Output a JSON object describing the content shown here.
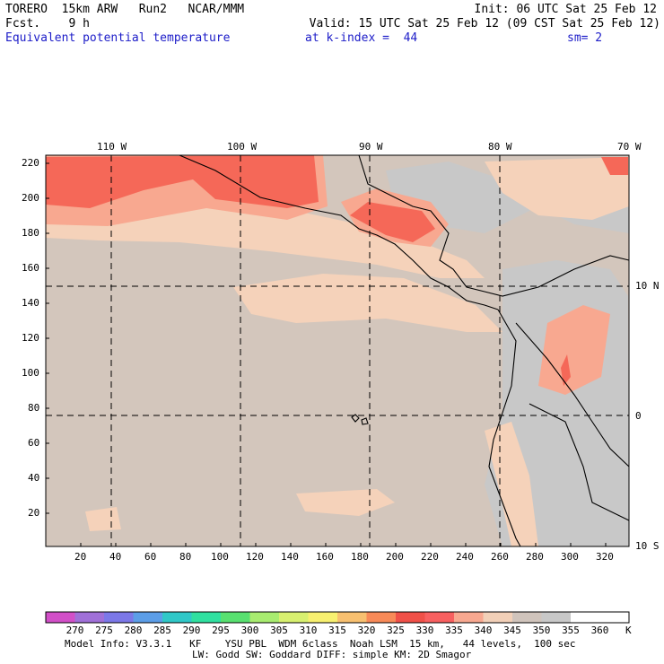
{
  "header": {
    "model_run": "TORERO  15km ARW   Run2   NCAR/MMM",
    "init": "Init: 06 UTC Sat 25 Feb 12",
    "fcst": "Fcst.    9 h",
    "valid": "Valid: 15 UTC Sat 25 Feb 12 (09 CST Sat 25 Feb 12)",
    "field": "Equivalent potential temperature",
    "level": "at k-index =  44",
    "smooth": "sm= 2"
  },
  "longitude_labels": [
    "110 W",
    "100 W",
    "90 W",
    "80 W",
    "70 W"
  ],
  "latitude_labels": [
    "10 N",
    "0",
    "10 S"
  ],
  "y_axis_ticks": [
    "220",
    "200",
    "180",
    "160",
    "140",
    "120",
    "100",
    "80",
    "60",
    "40",
    "20"
  ],
  "x_axis_ticks": [
    "20",
    "40",
    "60",
    "80",
    "100",
    "120",
    "140",
    "160",
    "180",
    "200",
    "220",
    "240",
    "260",
    "280",
    "300",
    "320"
  ],
  "colorbar": {
    "labels": [
      "270",
      "275",
      "280",
      "285",
      "290",
      "295",
      "300",
      "305",
      "310",
      "315",
      "320",
      "325",
      "330",
      "335",
      "340",
      "345",
      "350",
      "355",
      "360"
    ],
    "unit": "K",
    "colors": [
      "#d24fc8",
      "#a070d8",
      "#7c78e8",
      "#5c9ee8",
      "#30c8c8",
      "#30e0a0",
      "#58e070",
      "#a8ec70",
      "#d8f070",
      "#f8f070",
      "#f8c070",
      "#f88a58",
      "#f05048",
      "#f86060",
      "#f8a890",
      "#f2d0b8",
      "#d0c4bc",
      "#c8c8c8",
      "#ffffff",
      "#ffffff"
    ]
  },
  "field_colors": {
    "c345": "#d3c6bc",
    "c350": "#c8c8c8",
    "c340": "#f5d2ba",
    "c335": "#f8a890",
    "c330": "#f56858",
    "coast": "#000000"
  },
  "footer": {
    "line1": "Model Info: V3.3.1   KF    YSU PBL  WDM 6class  Noah LSM  15 km,   44 levels,  100 sec",
    "line2": "LW: Godd SW: Goddard DIFF: simple KM: 2D Smagor"
  }
}
